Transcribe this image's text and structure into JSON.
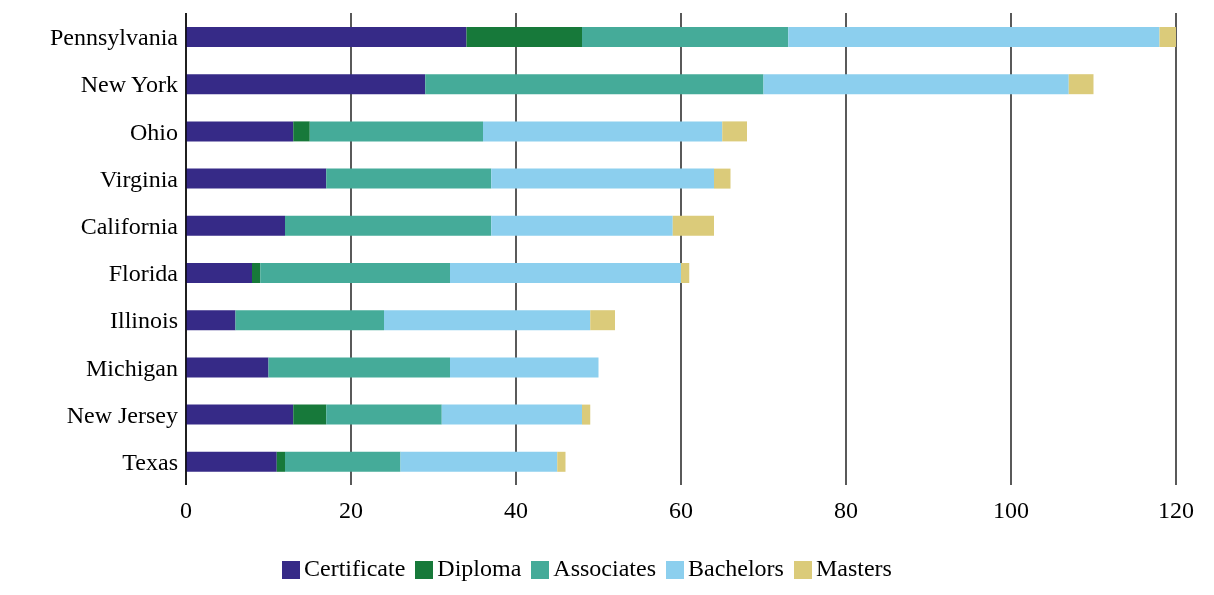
{
  "chart_data": {
    "type": "bar",
    "orientation": "horizontal",
    "stacked": true,
    "categories": [
      "Pennsylvania",
      "New York",
      "Ohio",
      "Virginia",
      "California",
      "Florida",
      "Illinois",
      "Michigan",
      "New Jersey",
      "Texas"
    ],
    "series": [
      {
        "name": "Certificate",
        "color": "#362a87",
        "values": [
          34,
          29,
          13,
          17,
          12,
          8,
          6,
          10,
          13,
          11
        ]
      },
      {
        "name": "Diploma",
        "color": "#17793a",
        "values": [
          14,
          0,
          2,
          0,
          0,
          1,
          0,
          0,
          4,
          1
        ]
      },
      {
        "name": "Associates",
        "color": "#45ab99",
        "values": [
          25,
          41,
          21,
          20,
          25,
          23,
          18,
          22,
          14,
          14
        ]
      },
      {
        "name": "Bachelors",
        "color": "#8ccfee",
        "values": [
          45,
          37,
          29,
          27,
          22,
          28,
          25,
          18,
          17,
          19
        ]
      },
      {
        "name": "Masters",
        "color": "#dbcb7a",
        "values": [
          2,
          3,
          3,
          2,
          5,
          1,
          3,
          0,
          1,
          1
        ]
      }
    ],
    "xlim": [
      0,
      120
    ],
    "xticks": [
      0,
      20,
      40,
      60,
      80,
      100,
      120
    ],
    "grid": "x",
    "legend": "bottom"
  }
}
